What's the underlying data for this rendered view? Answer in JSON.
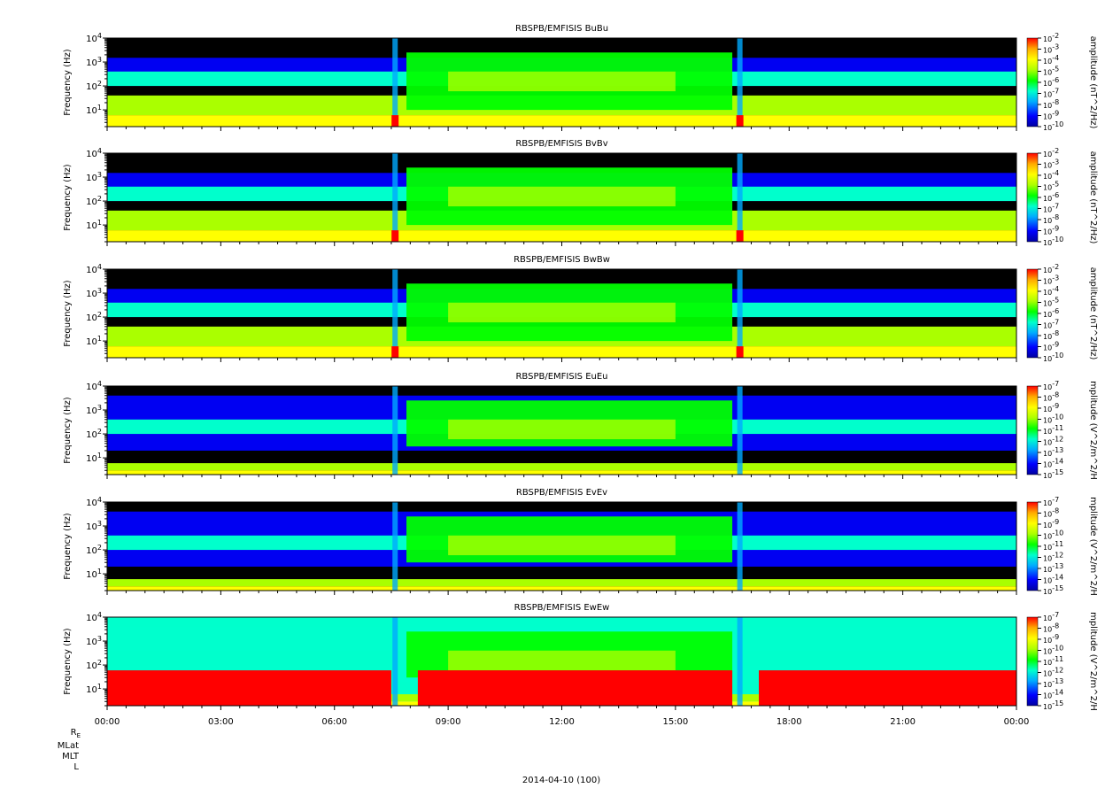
{
  "figure": {
    "date_label": "2014-04-10 (100)",
    "orbit_labels": [
      "R_E",
      "MLat",
      "MLT",
      "L"
    ],
    "time_ticks": [
      "00:00",
      "03:00",
      "06:00",
      "09:00",
      "12:00",
      "15:00",
      "18:00",
      "21:00",
      "00:00"
    ]
  },
  "colors": {
    "background_empty": "#000000",
    "scale": [
      "#0000a0",
      "#0000ff",
      "#00aaff",
      "#00ffcc",
      "#00ff00",
      "#aaff00",
      "#ffff00",
      "#ffaa00",
      "#ff0000"
    ]
  },
  "chart_data": [
    {
      "type": "heatmap",
      "title": "RBSPB/EMFISIS  BuBu",
      "ylabel": "Frequency (Hz)",
      "yscale": "log",
      "ylim": [
        2,
        10000
      ],
      "y_ticks": [
        "10^4",
        "10^3",
        "10^2",
        "10^1"
      ],
      "x_range": [
        "00:00",
        "00:00"
      ],
      "colorbar_label": "amplitude (nT^2/Hz)",
      "colorbar_scale": "log",
      "colorbar_ticks": [
        "10^-2",
        "10^-3",
        "10^-4",
        "10^-5",
        "10^-6",
        "10^-7",
        "10^-8",
        "10^-9",
        "10^-10"
      ]
    },
    {
      "type": "heatmap",
      "title": "RBSPB/EMFISIS  BvBv",
      "ylabel": "Frequency (Hz)",
      "yscale": "log",
      "ylim": [
        2,
        10000
      ],
      "y_ticks": [
        "10^4",
        "10^3",
        "10^2",
        "10^1"
      ],
      "x_range": [
        "00:00",
        "00:00"
      ],
      "colorbar_label": "amplitude (nT^2/Hz)",
      "colorbar_scale": "log",
      "colorbar_ticks": [
        "10^-2",
        "10^-3",
        "10^-4",
        "10^-5",
        "10^-6",
        "10^-7",
        "10^-8",
        "10^-9",
        "10^-10"
      ]
    },
    {
      "type": "heatmap",
      "title": "RBSPB/EMFISIS  BwBw",
      "ylabel": "Frequency (Hz)",
      "yscale": "log",
      "ylim": [
        2,
        10000
      ],
      "y_ticks": [
        "10^4",
        "10^3",
        "10^2",
        "10^1"
      ],
      "x_range": [
        "00:00",
        "00:00"
      ],
      "colorbar_label": "amplitude (nT^2/Hz)",
      "colorbar_scale": "log",
      "colorbar_ticks": [
        "10^-2",
        "10^-3",
        "10^-4",
        "10^-5",
        "10^-6",
        "10^-7",
        "10^-8",
        "10^-9",
        "10^-10"
      ]
    },
    {
      "type": "heatmap",
      "title": "RBSPB/EMFISIS  EuEu",
      "ylabel": "Frequency (Hz)",
      "yscale": "log",
      "ylim": [
        2,
        10000
      ],
      "y_ticks": [
        "10^4",
        "10^3",
        "10^2",
        "10^1"
      ],
      "x_range": [
        "00:00",
        "00:00"
      ],
      "colorbar_label": "mplitude (V^2/m^2/H",
      "colorbar_scale": "log",
      "colorbar_ticks": [
        "10^-7",
        "10^-8",
        "10^-9",
        "10^-10",
        "10^-11",
        "10^-12",
        "10^-13",
        "10^-14",
        "10^-15"
      ]
    },
    {
      "type": "heatmap",
      "title": "RBSPB/EMFISIS  EvEv",
      "ylabel": "Frequency (Hz)",
      "yscale": "log",
      "ylim": [
        2,
        10000
      ],
      "y_ticks": [
        "10^4",
        "10^3",
        "10^2",
        "10^1"
      ],
      "x_range": [
        "00:00",
        "00:00"
      ],
      "colorbar_label": "mplitude (V^2/m^2/H",
      "colorbar_scale": "log",
      "colorbar_ticks": [
        "10^-7",
        "10^-8",
        "10^-9",
        "10^-10",
        "10^-11",
        "10^-12",
        "10^-13",
        "10^-14",
        "10^-15"
      ]
    },
    {
      "type": "heatmap",
      "title": "RBSPB/EMFISIS  EwEw",
      "ylabel": "Frequency (Hz)",
      "yscale": "log",
      "ylim": [
        2,
        10000
      ],
      "y_ticks": [
        "10^4",
        "10^3",
        "10^2",
        "10^1"
      ],
      "x_range": [
        "00:00",
        "00:00"
      ],
      "colorbar_label": "mplitude (V^2/m^2/H",
      "colorbar_scale": "log",
      "colorbar_ticks": [
        "10^-7",
        "10^-8",
        "10^-9",
        "10^-10",
        "10^-11",
        "10^-12",
        "10^-13",
        "10^-14",
        "10^-15"
      ]
    }
  ]
}
